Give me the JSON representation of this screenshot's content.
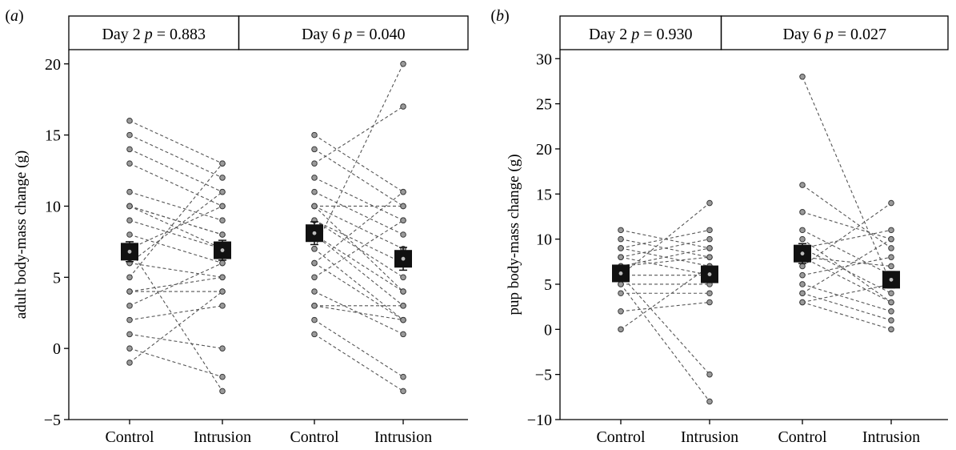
{
  "chart_data": [
    {
      "type": "scatter",
      "panel_label": "(a)",
      "ylabel": "adult body-mass change (g)",
      "ylim": [
        -5,
        21
      ],
      "yticks": [
        -5,
        0,
        5,
        10,
        15,
        20
      ],
      "categories": [
        "Control",
        "Intrusion",
        "Control",
        "Intrusion"
      ],
      "strips": [
        "Day 2 p = 0.883",
        "Day 6 p = 0.040"
      ],
      "groups": [
        {
          "name": "Day 2",
          "pairs": [
            [
              16,
              13
            ],
            [
              15,
              12
            ],
            [
              14,
              11
            ],
            [
              13,
              10
            ],
            [
              11,
              9
            ],
            [
              10,
              8
            ],
            [
              10,
              8
            ],
            [
              10,
              7
            ],
            [
              9,
              7
            ],
            [
              8,
              6
            ],
            [
              7,
              10
            ],
            [
              6,
              11
            ],
            [
              6,
              5
            ],
            [
              5,
              13
            ],
            [
              4,
              4
            ],
            [
              4,
              5
            ],
            [
              3,
              6
            ],
            [
              2,
              3
            ],
            [
              1,
              0
            ],
            [
              -1,
              4
            ],
            [
              0,
              -2
            ],
            [
              7,
              -3
            ]
          ],
          "means": [
            6.8,
            6.9
          ],
          "sem": [
            0.7,
            0.7
          ]
        },
        {
          "name": "Day 6",
          "pairs": [
            [
              15,
              11
            ],
            [
              14,
              10
            ],
            [
              13,
              17
            ],
            [
              12,
              9
            ],
            [
              11,
              8
            ],
            [
              10,
              7
            ],
            [
              10,
              10
            ],
            [
              9,
              5
            ],
            [
              9,
              6
            ],
            [
              8,
              4
            ],
            [
              8,
              3
            ],
            [
              7,
              20
            ],
            [
              7,
              2
            ],
            [
              6,
              2
            ],
            [
              5,
              9
            ],
            [
              4,
              1
            ],
            [
              3,
              3
            ],
            [
              2,
              -2
            ],
            [
              1,
              -3
            ],
            [
              10,
              4
            ],
            [
              6,
              11
            ],
            [
              3,
              2
            ]
          ],
          "means": [
            8.1,
            6.3
          ],
          "sem": [
            0.8,
            0.8
          ]
        }
      ],
      "grid": false
    },
    {
      "type": "scatter",
      "panel_label": "(b)",
      "ylabel": "pup body-mass change (g)",
      "ylim": [
        -10,
        31
      ],
      "yticks": [
        -10,
        -5,
        0,
        5,
        10,
        15,
        20,
        25,
        30
      ],
      "categories": [
        "Control",
        "Intrusion",
        "Control",
        "Intrusion"
      ],
      "strips": [
        "Day 2 p = 0.930",
        "Day 6 p = 0.027"
      ],
      "groups": [
        {
          "name": "Day 2",
          "pairs": [
            [
              11,
              9
            ],
            [
              10,
              8
            ],
            [
              9,
              7
            ],
            [
              9,
              11
            ],
            [
              8,
              10
            ],
            [
              8,
              6
            ],
            [
              7,
              9
            ],
            [
              7,
              8
            ],
            [
              6,
              14
            ],
            [
              6,
              6
            ],
            [
              5,
              5
            ],
            [
              5,
              -8
            ],
            [
              4,
              4
            ],
            [
              2,
              3
            ],
            [
              0,
              7
            ],
            [
              6,
              -5
            ]
          ],
          "means": [
            6.2,
            6.1
          ],
          "sem": [
            0.8,
            0.9
          ]
        },
        {
          "name": "Day 6",
          "pairs": [
            [
              28,
              5
            ],
            [
              16,
              9
            ],
            [
              13,
              10
            ],
            [
              11,
              6
            ],
            [
              10,
              3
            ],
            [
              9,
              11
            ],
            [
              9,
              4
            ],
            [
              8,
              7
            ],
            [
              7,
              14
            ],
            [
              6,
              8
            ],
            [
              5,
              2
            ],
            [
              4,
              1
            ],
            [
              3,
              0
            ],
            [
              3,
              5
            ],
            [
              4,
              10
            ],
            [
              8,
              3
            ]
          ],
          "means": [
            8.4,
            5.5
          ],
          "sem": [
            1.1,
            0.9
          ]
        }
      ],
      "grid": false
    }
  ]
}
